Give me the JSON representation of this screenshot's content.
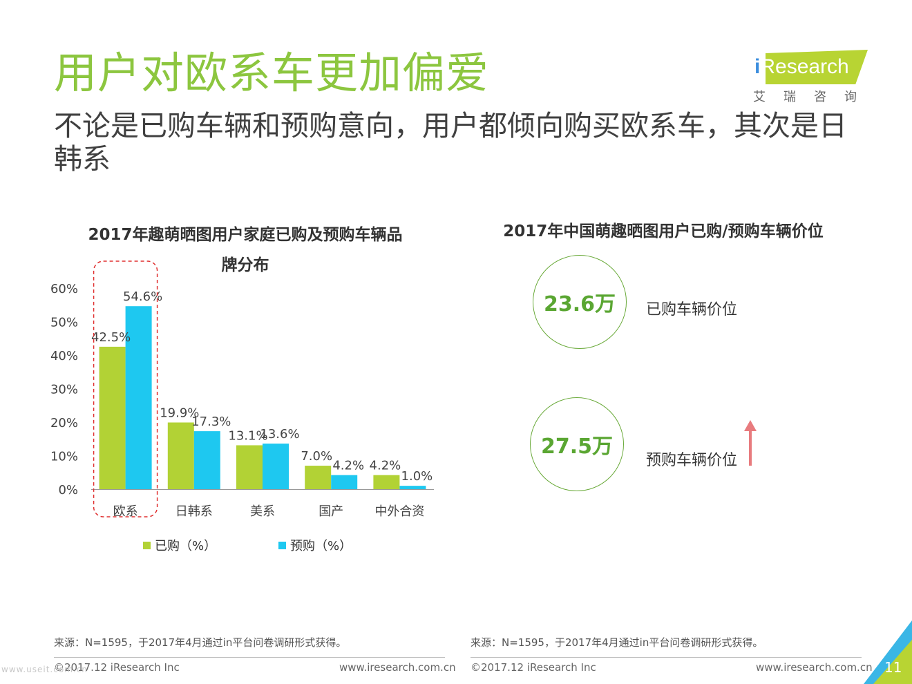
{
  "slide": {
    "title": "用户对欧系车更加偏爱",
    "subtitle": "不论是已购车辆和预购意向，用户都倾向购买欧系车，其次是日韩系",
    "page_number": "11",
    "watermark": "www.useit.com.cn"
  },
  "logo": {
    "name_i": "i",
    "name_rest": "Research",
    "cn": "艾瑞咨询"
  },
  "chart_data": [
    {
      "type": "bar",
      "title": "2017年趣萌晒图用户家庭已购及预购车辆品牌分布",
      "categories": [
        "欧系",
        "日韩系",
        "美系",
        "国产",
        "中外合资"
      ],
      "series": [
        {
          "name": "已购（%）",
          "values": [
            42.5,
            19.9,
            13.1,
            7.0,
            4.2
          ],
          "labels": [
            "42.5%",
            "19.9%",
            "13.1%",
            "7.0%",
            "4.2%"
          ],
          "color": "#b2d235"
        },
        {
          "name": "预购（%）",
          "values": [
            54.6,
            17.3,
            13.6,
            4.2,
            1.0
          ],
          "labels": [
            "54.6%",
            "17.3%",
            "13.6%",
            "4.2%",
            "1.0%"
          ],
          "color": "#1ec8f0"
        }
      ],
      "ylim": [
        0,
        60
      ],
      "yticks": [
        "0%",
        "10%",
        "20%",
        "30%",
        "40%",
        "50%",
        "60%"
      ],
      "ytick_values": [
        0,
        10,
        20,
        30,
        40,
        50,
        60
      ],
      "highlight_category": "欧系",
      "legend_position": "bottom",
      "grid": false
    },
    {
      "type": "table",
      "title": "2017年中国萌趣晒图用户已购/预购车辆价位",
      "items": [
        {
          "value": "23.6万",
          "label": "已购车辆价位"
        },
        {
          "value": "27.5万",
          "label": "预购车辆价位"
        }
      ],
      "arrow": "arrow-up-icon",
      "arrow_color": "#e87b7e"
    }
  ],
  "footer": {
    "source_left": "来源：N=1595，于2017年4月通过in平台问卷调研形式获得。",
    "source_right": "来源：N=1595，于2017年4月通过in平台问卷调研形式获得。",
    "copyright_left": "©2017.12 iResearch Inc",
    "website_left": "www.iresearch.com.cn",
    "copyright_right": "©2017.12 iResearch Inc",
    "website_right": "www.iresearch.com.cn"
  },
  "colors": {
    "title": "#8cc63f",
    "purchased": "#b2d235",
    "planned": "#1ec8f0",
    "circle_border": "#6aaa3a",
    "circle_text": "#5aa632",
    "highlight_box": "#e03030",
    "arrow": "#e87b7e"
  }
}
